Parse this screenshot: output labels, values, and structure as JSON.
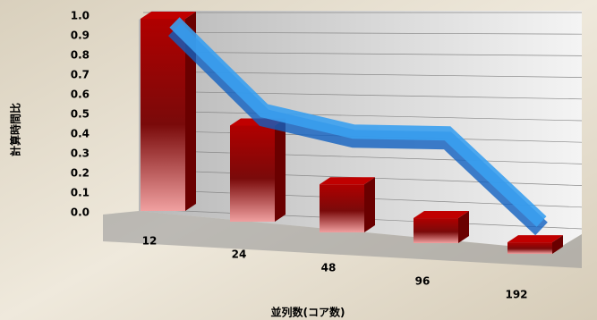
{
  "chart_data": {
    "type": "bar3d",
    "y_label": "計算時間比",
    "x_label": "並列数(コア数)",
    "categories": [
      "12",
      "24",
      "48",
      "96",
      "192"
    ],
    "series": [
      {
        "type": "bar",
        "color": "#c00000",
        "values": [
          1.0,
          0.5,
          0.25,
          0.13,
          0.06
        ]
      },
      {
        "type": "line",
        "color": "#3aa0f0",
        "values": [
          1.0,
          0.55,
          0.45,
          0.45,
          0.0
        ]
      }
    ],
    "ylim": [
      0,
      1.0
    ],
    "yticks": [
      {
        "value": 0,
        "label": "0.0"
      },
      0.1,
      0.2,
      0.3,
      0.4,
      0.5,
      0.6,
      0.7,
      0.8,
      0.9,
      {
        "value": 1,
        "label": "1.0"
      }
    ],
    "grid": true
  }
}
